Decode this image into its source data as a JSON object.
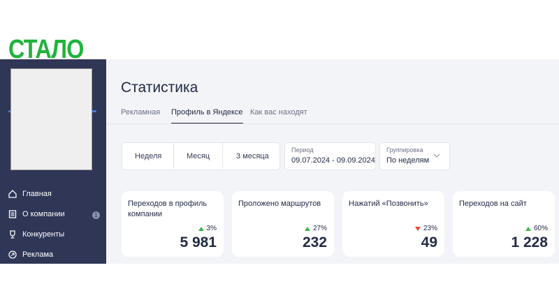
{
  "caption": "СТАЛО",
  "sidebar": {
    "menu": [
      {
        "label": "Главная"
      },
      {
        "label": "О компании",
        "badge": "1"
      },
      {
        "label": "Конкуренты"
      },
      {
        "label": "Реклама"
      }
    ]
  },
  "header": {
    "title": "Статистика"
  },
  "tabs": [
    "Рекламная",
    "Профиль в Яндексе",
    "Как вас находят"
  ],
  "filters": {
    "range_buttons": [
      "Неделя",
      "Месяц",
      "3 месяца"
    ],
    "period": {
      "label": "Период",
      "value": "09.07.2024 - 09.09.2024"
    },
    "grouping": {
      "label": "Группировка",
      "value": "По неделям"
    }
  },
  "cards": [
    {
      "title": "Переходов в профиль компании",
      "change": "3%",
      "value": "5 981"
    },
    {
      "title": "Проложено маршрутов",
      "change": "27%",
      "value": "232"
    },
    {
      "title": "Нажатий «Позвонить»",
      "change": "23%",
      "value": "49"
    },
    {
      "title": "Переходов на сайт",
      "change": "60%",
      "value": "1 228"
    }
  ]
}
